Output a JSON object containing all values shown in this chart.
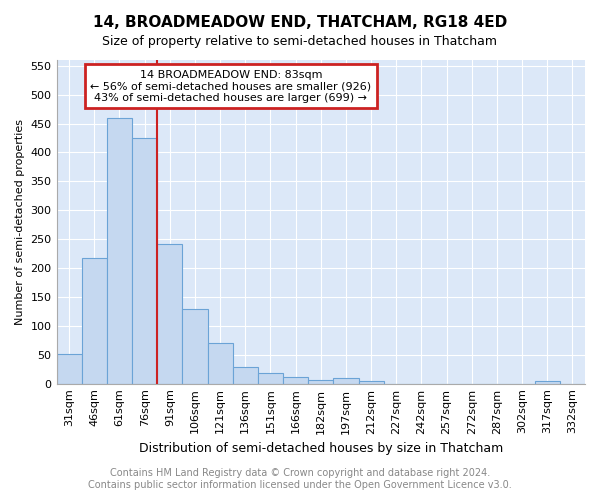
{
  "title": "14, BROADMEADOW END, THATCHAM, RG18 4ED",
  "subtitle": "Size of property relative to semi-detached houses in Thatcham",
  "xlabel": "Distribution of semi-detached houses by size in Thatcham",
  "ylabel": "Number of semi-detached properties",
  "categories": [
    "31sqm",
    "46sqm",
    "61sqm",
    "76sqm",
    "91sqm",
    "106sqm",
    "121sqm",
    "136sqm",
    "151sqm",
    "166sqm",
    "182sqm",
    "197sqm",
    "212sqm",
    "227sqm",
    "242sqm",
    "257sqm",
    "272sqm",
    "287sqm",
    "302sqm",
    "317sqm",
    "332sqm"
  ],
  "values": [
    52,
    218,
    460,
    425,
    242,
    130,
    70,
    28,
    18,
    11,
    7,
    10,
    4,
    0,
    0,
    0,
    0,
    0,
    0,
    5,
    0
  ],
  "bar_color": "#c5d8f0",
  "bar_edge_color": "#6ba3d6",
  "property_line_label": "14 BROADMEADOW END: 83sqm",
  "annotation_line1": "← 56% of semi-detached houses are smaller (926)",
  "annotation_line2": "43% of semi-detached houses are larger (699) →",
  "annotation_box_color": "#ffffff",
  "annotation_box_edge_color": "#cc2222",
  "line_color": "#cc2222",
  "ylim": [
    0,
    560
  ],
  "yticks": [
    0,
    50,
    100,
    150,
    200,
    250,
    300,
    350,
    400,
    450,
    500,
    550
  ],
  "footnote1": "Contains HM Land Registry data © Crown copyright and database right 2024.",
  "footnote2": "Contains public sector information licensed under the Open Government Licence v3.0.",
  "background_color": "#dce8f8",
  "grid_color": "#ffffff",
  "title_fontsize": 11,
  "subtitle_fontsize": 9,
  "xlabel_fontsize": 9,
  "ylabel_fontsize": 8,
  "tick_fontsize": 8,
  "annotation_fontsize": 8,
  "footnote_fontsize": 7
}
